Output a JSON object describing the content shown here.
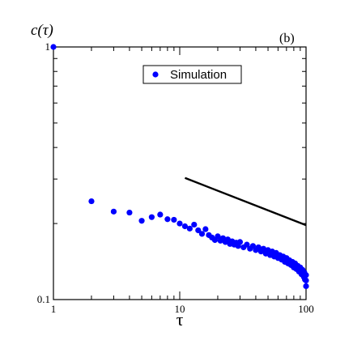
{
  "chart_data": {
    "type": "scatter",
    "panel_label": "(b)",
    "xlabel": "τ",
    "ylabel": "c(τ)",
    "xscale": "log",
    "yscale": "log",
    "xlim": [
      1,
      100
    ],
    "ylim": [
      0.1,
      1
    ],
    "x_tick_labels": [
      "1",
      "10",
      "100"
    ],
    "y_tick_labels": [
      "0.1",
      "1"
    ],
    "legend": {
      "placement": "top-center",
      "entries": [
        "Simulation"
      ]
    },
    "series": [
      {
        "name": "Simulation",
        "color": "#0000ff",
        "marker": "circle",
        "points": [
          [
            1,
            1.0
          ],
          [
            2,
            0.245
          ],
          [
            3,
            0.223
          ],
          [
            4,
            0.221
          ],
          [
            5,
            0.205
          ],
          [
            6,
            0.212
          ],
          [
            7,
            0.217
          ],
          [
            8,
            0.208
          ],
          [
            9,
            0.207
          ],
          [
            10,
            0.2
          ],
          [
            11,
            0.195
          ],
          [
            12,
            0.191
          ],
          [
            13,
            0.198
          ],
          [
            14,
            0.188
          ],
          [
            15,
            0.182
          ],
          [
            16,
            0.19
          ],
          [
            17,
            0.18
          ],
          [
            18,
            0.176
          ],
          [
            19,
            0.172
          ],
          [
            20,
            0.178
          ],
          [
            21,
            0.171
          ],
          [
            22,
            0.175
          ],
          [
            23,
            0.169
          ],
          [
            24,
            0.173
          ],
          [
            25,
            0.166
          ],
          [
            26,
            0.17
          ],
          [
            27,
            0.165
          ],
          [
            28,
            0.168
          ],
          [
            29,
            0.163
          ],
          [
            30,
            0.169
          ],
          [
            32,
            0.161
          ],
          [
            34,
            0.165
          ],
          [
            36,
            0.159
          ],
          [
            38,
            0.163
          ],
          [
            40,
            0.157
          ],
          [
            42,
            0.161
          ],
          [
            44,
            0.155
          ],
          [
            46,
            0.159
          ],
          [
            48,
            0.152
          ],
          [
            50,
            0.157
          ],
          [
            52,
            0.15
          ],
          [
            54,
            0.155
          ],
          [
            56,
            0.148
          ],
          [
            58,
            0.153
          ],
          [
            60,
            0.146
          ],
          [
            62,
            0.15
          ],
          [
            64,
            0.144
          ],
          [
            66,
            0.148
          ],
          [
            68,
            0.141
          ],
          [
            70,
            0.146
          ],
          [
            72,
            0.139
          ],
          [
            74,
            0.143
          ],
          [
            76,
            0.137
          ],
          [
            78,
            0.141
          ],
          [
            80,
            0.134
          ],
          [
            82,
            0.139
          ],
          [
            84,
            0.132
          ],
          [
            86,
            0.136
          ],
          [
            88,
            0.129
          ],
          [
            90,
            0.134
          ],
          [
            92,
            0.126
          ],
          [
            94,
            0.131
          ],
          [
            96,
            0.123
          ],
          [
            97,
            0.128
          ],
          [
            98,
            0.12
          ],
          [
            99,
            0.125
          ],
          [
            100,
            0.113
          ],
          [
            100,
            0.119
          ],
          [
            100,
            0.125
          ]
        ]
      },
      {
        "name": "",
        "color": "#000000",
        "marker": "line",
        "points": [
          [
            11,
            0.303
          ],
          [
            100,
            0.197
          ]
        ]
      }
    ]
  }
}
